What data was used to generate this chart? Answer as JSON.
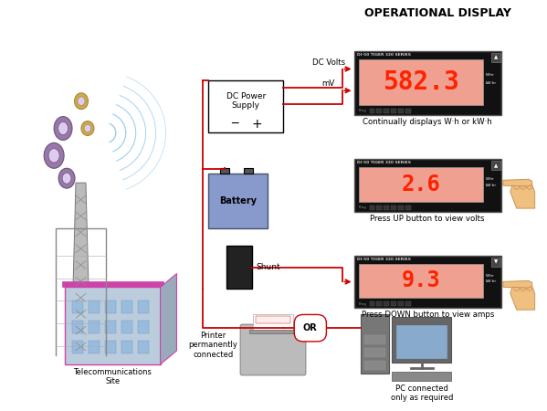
{
  "title": "OPERATIONAL DISPLAY",
  "bg_color": "#ffffff",
  "display_bg": "#111111",
  "display_screen_bg": "#f0a090",
  "display_text_color": "#ff2200",
  "display1_value": "582.3",
  "display2_value": "2.6",
  "display3_value": "9.3",
  "display_brand": "DI-50 TIGER 320 SERIES",
  "display1_caption": "Continually displays W·h or kW·h",
  "display2_caption": "Press UP button to view volts",
  "display3_caption": "Press DOWN button to view amps",
  "dc_power_label": "DC Power\nSupply",
  "battery_label": "Battery",
  "shunt_label": "Shunt",
  "printer_label": "Printer\npermanently\nconnected",
  "pc_label": "PC connected\nonly as required",
  "telecom_label": "Telecommunications\nSite",
  "dc_volts_label": "DC Volts",
  "mv_label": "mV",
  "or_label": "OR",
  "wire_color": "#cc0000",
  "hand_color": "#f0c080",
  "hand_edge": "#c8955a"
}
